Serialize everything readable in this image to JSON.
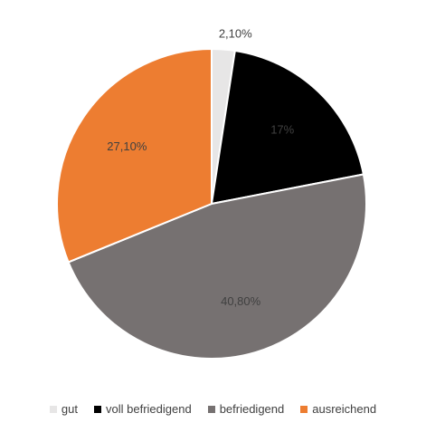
{
  "chart_data": {
    "type": "pie",
    "categories": [
      "gut",
      "voll befriedigend",
      "befriedigend",
      "ausreichend"
    ],
    "values": [
      2.1,
      17,
      40.8,
      27.1
    ],
    "data_labels": [
      "2,10%",
      "17%",
      "40,80%",
      "27,10%"
    ],
    "colors": [
      "#e7e6e6",
      "#000000",
      "#767171",
      "#ed7d31"
    ],
    "label_colors": [
      "#404040",
      "#404040",
      "#404040",
      "#404040"
    ],
    "legend_position": "bottom"
  }
}
